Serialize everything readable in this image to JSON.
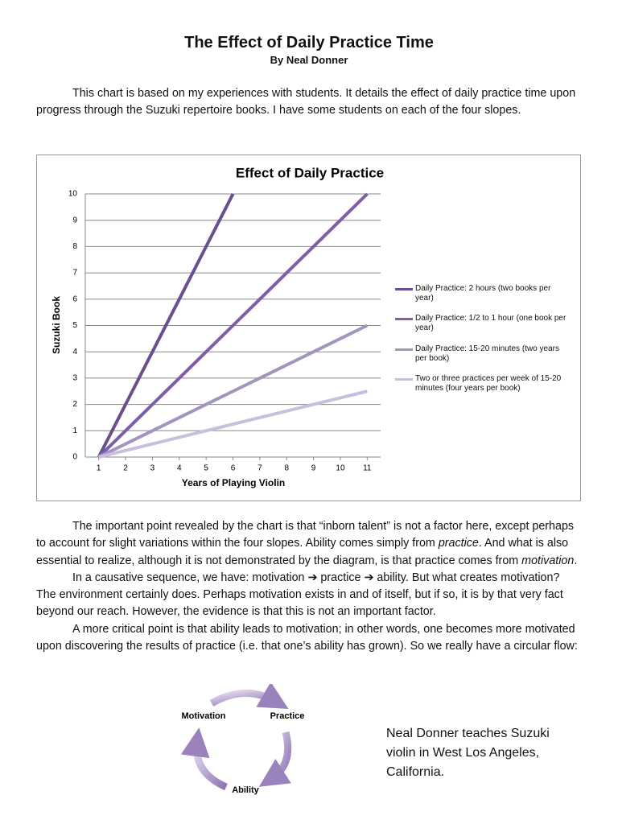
{
  "header": {
    "title": "The Effect of Daily Practice Time",
    "author": "By Neal Donner"
  },
  "intro": "This chart is based on my experiences with students. It details the effect of daily practice time upon progress through the Suzuki repertoire books. I have some students on each of the four slopes.",
  "chart_data": {
    "type": "line",
    "title": "Effect of Daily Practice",
    "x_label": "Years of Playing Violin",
    "y_label": "Suzuki Book",
    "x": [
      1,
      2,
      3,
      4,
      5,
      6,
      7,
      8,
      9,
      10,
      11
    ],
    "xlim": [
      0.5,
      11.5
    ],
    "xticks": [
      1,
      2,
      3,
      4,
      5,
      6,
      7,
      8,
      9,
      10,
      11
    ],
    "ylim": [
      0,
      10
    ],
    "yticks": [
      0,
      1,
      2,
      3,
      4,
      5,
      6,
      7,
      8,
      9,
      10
    ],
    "grid": true,
    "series": [
      {
        "name": "Daily Practice: 2 hours (two books per year)",
        "color": "#6a4f8e",
        "values": [
          0,
          2,
          4,
          6,
          8,
          10,
          null,
          null,
          null,
          null,
          null
        ]
      },
      {
        "name": "Daily Practice: 1/2 to 1 hour (one book per year)",
        "color": "#7d5fa6",
        "values": [
          0,
          1,
          2,
          3,
          4,
          5,
          6,
          7,
          8,
          9,
          10
        ]
      },
      {
        "name": "Daily Practice: 15-20 minutes (two years per book)",
        "color": "#a393c0",
        "values": [
          0,
          0.5,
          1,
          1.5,
          2,
          2.5,
          3,
          3.5,
          4,
          4.5,
          5
        ]
      },
      {
        "name": "Two or three practices per week of 15-20 minutes (four years per book)",
        "color": "#c9bfdc",
        "values": [
          0,
          0.25,
          0.5,
          0.75,
          1,
          1.25,
          1.5,
          1.75,
          2,
          2.25,
          2.5
        ]
      }
    ]
  },
  "paragraphs": [
    [
      "The important point revealed by the chart is that “inborn talent” is not a factor here, except perhaps to account for slight variations within the four slopes. Ability comes simply from ",
      "practice",
      ". And what is also essential to realize, although it is not demonstrated by the diagram, is that practice comes from ",
      "motivation",
      "."
    ],
    [
      "In a causative sequence, we have: motivation ➔ practice ➔ ability. But what creates motivation? The environment certainly does. Perhaps motivation exists in and of itself, but if so, it is by that very fact beyond our reach. However, the evidence is that this is not an important factor."
    ],
    [
      "A more critical point is that ability leads to motivation; in other words, one becomes more motivated upon discovering the results of practice (i.e. that one’s ability has grown). So we really have a circular flow:"
    ]
  ],
  "cycle": {
    "nodes": [
      "Motivation",
      "Practice",
      "Ability"
    ]
  },
  "bio": "Neal Donner teaches Suzuki violin in West Los Angeles, California."
}
